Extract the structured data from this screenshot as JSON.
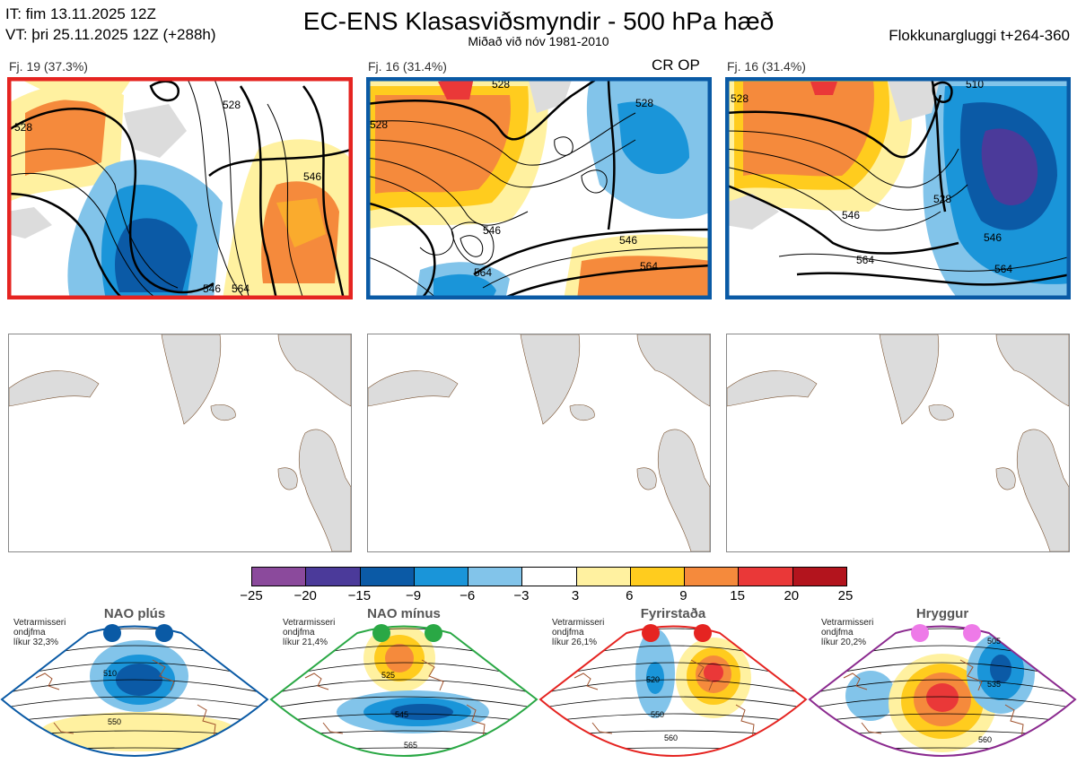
{
  "header": {
    "it": "IT: fim 13.11.2025 12Z",
    "vt": "VT: þri 25.11.2025 12Z  (+288h)",
    "title": "EC-ENS Klasasviðsmyndir - 500 hPa hæð",
    "subtitle": "Miðað við nóv 1981-2010",
    "window": "Flokkunargluggi t+264-360"
  },
  "clusters": [
    {
      "label": "Fj. 19 (37.3%)",
      "tag": "",
      "border": "#e52421",
      "contours": [
        "528",
        "528",
        "546",
        "546",
        "564"
      ]
    },
    {
      "label": "Fj. 16 (31.4%)",
      "tag": "CR OP",
      "border": "#0a5aa5",
      "contours": [
        "528",
        "528",
        "528",
        "546",
        "546",
        "564",
        "564"
      ]
    },
    {
      "label": "Fj. 16 (31.4%)",
      "tag": "",
      "border": "#0a5aa5",
      "contours": [
        "510",
        "528",
        "528",
        "546",
        "546",
        "564",
        "564"
      ]
    }
  ],
  "colorbar": {
    "ticks": [
      "−25",
      "−20",
      "−15",
      "−9",
      "−6",
      "−3",
      "3",
      "6",
      "9",
      "15",
      "20",
      "25"
    ],
    "colors": [
      "#8b4a9c",
      "#4b3a9a",
      "#0b5aa6",
      "#1a95d9",
      "#82c4ea",
      "#ffffff",
      "#fff1a0",
      "#ffcc1e",
      "#f58a3c",
      "#ea3838",
      "#b3141d"
    ]
  },
  "regimes": [
    {
      "name": "NAO plús",
      "info": [
        "Vetrarmisseri",
        "ondjfma",
        "líkur 32,3%"
      ],
      "color": "#0a5aa5",
      "dot": "#0a5aa5",
      "contours": [
        "510",
        "550"
      ]
    },
    {
      "name": "NAO mínus",
      "info": [
        "Vetrarmisseri",
        "ondjfma",
        "líkur 21,4%"
      ],
      "color": "#2aa845",
      "dot": "#2aa845",
      "contours": [
        "525",
        "545",
        "565"
      ]
    },
    {
      "name": "Fyrirstaða",
      "info": [
        "Vetrarmisseri",
        "ondjfma",
        "líkur 26,1%"
      ],
      "color": "#e52421",
      "dot": "#e52421",
      "contours": [
        "520",
        "550",
        "560"
      ]
    },
    {
      "name": "Hryggur",
      "info": [
        "Vetrarmisseri",
        "ondjfma",
        "líkur 20,2%"
      ],
      "color": "#8b2a8f",
      "dot": "#ee7ae8",
      "contours": [
        "505",
        "535",
        "560"
      ]
    }
  ]
}
